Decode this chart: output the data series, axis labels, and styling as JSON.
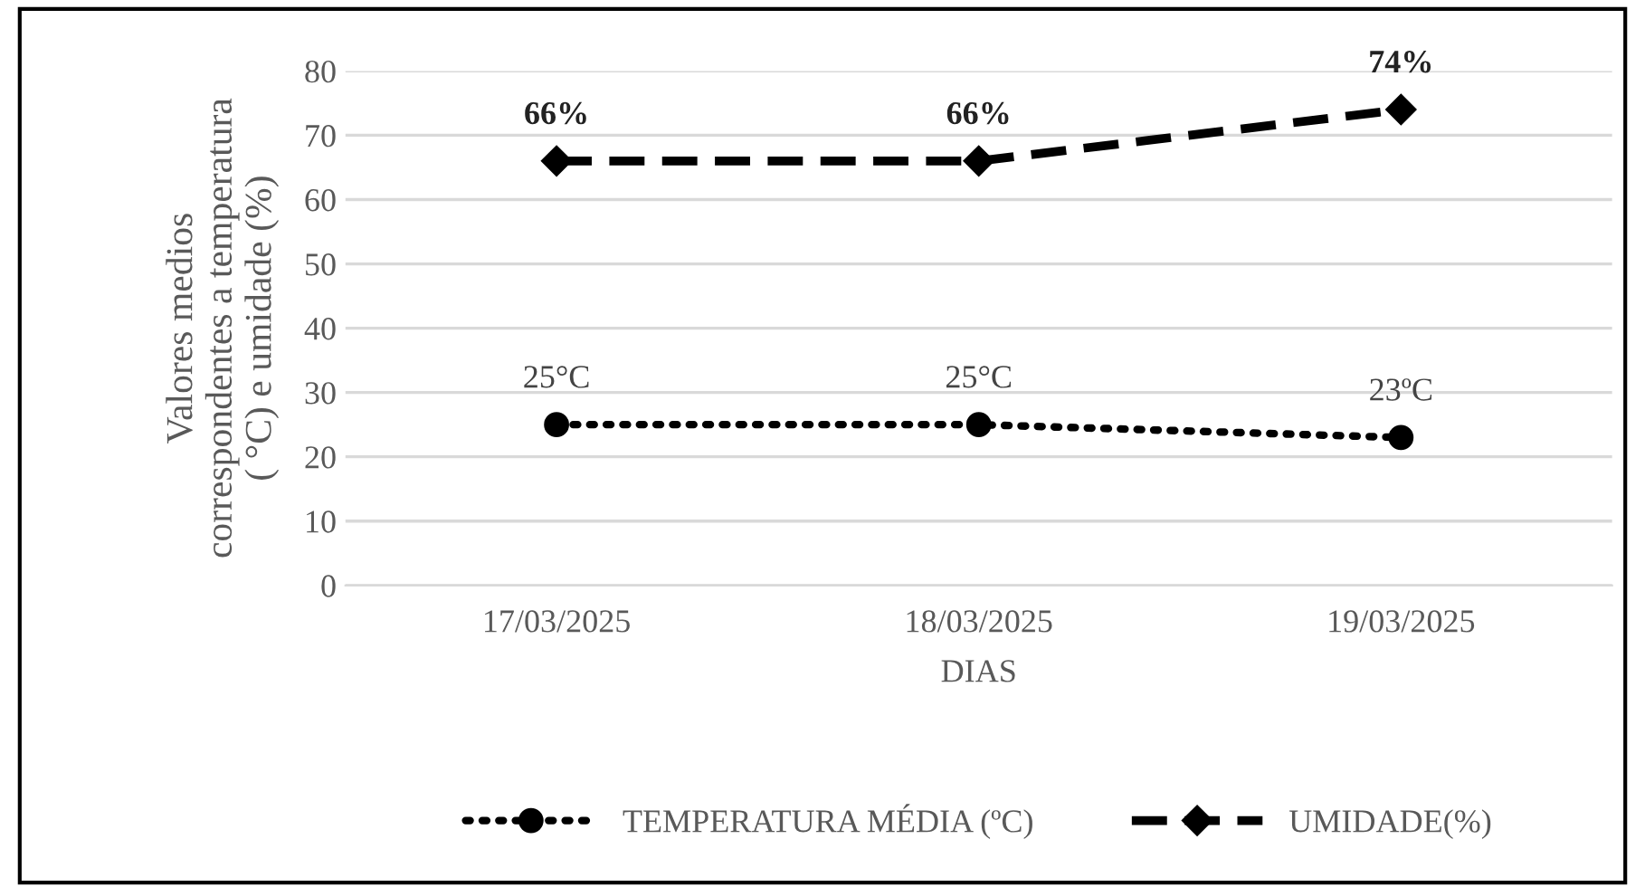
{
  "chart_data": {
    "type": "line",
    "xlabel": "DIAS",
    "ylabel": "Valores medios\ncorrespondentes a temperatura\n( °C) e umidade (%)",
    "categories": [
      "17/03/2025",
      "18/03/2025",
      "19/03/2025"
    ],
    "series": [
      {
        "name": "TEMPERATURA MÉDIA (ºC)",
        "color": "#000000",
        "values": [
          25,
          25,
          23
        ],
        "marker": "circle",
        "line_style": "dotted",
        "value_labels": [
          "25°C",
          "25°C",
          "23ºC"
        ]
      },
      {
        "name": "UMIDADE(%)",
        "color": "#000000",
        "values": [
          66,
          66,
          74
        ],
        "marker": "diamond",
        "line_style": "dashed",
        "value_labels": [
          "66%",
          "66%",
          "74%"
        ]
      }
    ],
    "ylim": [
      0,
      80
    ],
    "yticks": [
      0,
      10,
      20,
      30,
      40,
      50,
      60,
      70,
      80
    ],
    "grid": "y",
    "legend": "bottom"
  }
}
